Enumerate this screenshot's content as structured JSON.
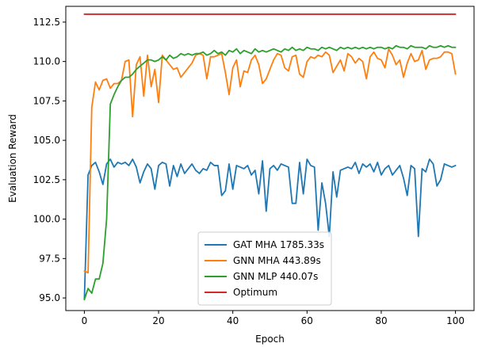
{
  "chart_data": {
    "type": "line",
    "title": "",
    "xlabel": "Epoch",
    "ylabel": "Evaluation Reward",
    "xlim": [
      -5,
      105
    ],
    "ylim": [
      94.2,
      113.5
    ],
    "xticks": [
      0,
      20,
      40,
      60,
      80,
      100
    ],
    "yticks": [
      95.0,
      97.5,
      100.0,
      102.5,
      105.0,
      107.5,
      110.0,
      112.5
    ],
    "ytick_labels": [
      "95.0",
      "97.5",
      "100.0",
      "102.5",
      "105.0",
      "107.5",
      "110.0",
      "112.5"
    ],
    "grid": false,
    "legend_position": "lower-center",
    "series": [
      {
        "name": "GAT MHA 1785.33s",
        "color": "#1f77b4",
        "x": [
          0,
          1,
          2,
          3,
          4,
          5,
          6,
          7,
          8,
          9,
          10,
          11,
          12,
          13,
          14,
          15,
          16,
          17,
          18,
          19,
          20,
          21,
          22,
          23,
          24,
          25,
          26,
          27,
          28,
          29,
          30,
          31,
          32,
          33,
          34,
          35,
          36,
          37,
          38,
          39,
          40,
          41,
          42,
          43,
          44,
          45,
          46,
          47,
          48,
          49,
          50,
          51,
          52,
          53,
          54,
          55,
          56,
          57,
          58,
          59,
          60,
          61,
          62,
          63,
          64,
          65,
          66,
          67,
          68,
          69,
          70,
          71,
          72,
          73,
          74,
          75,
          76,
          77,
          78,
          79,
          80,
          81,
          82,
          83,
          84,
          85,
          86,
          87,
          88,
          89,
          90,
          91,
          92,
          93,
          94,
          95,
          96,
          97,
          98,
          99,
          100
        ],
        "y": [
          94.9,
          102.8,
          103.4,
          103.6,
          103.0,
          102.2,
          103.5,
          103.8,
          103.3,
          103.6,
          103.5,
          103.6,
          103.4,
          103.8,
          103.3,
          102.3,
          103.0,
          103.5,
          103.2,
          101.9,
          103.4,
          103.6,
          103.5,
          102.1,
          103.4,
          102.7,
          103.5,
          102.9,
          103.2,
          103.5,
          103.1,
          102.9,
          103.2,
          103.1,
          103.6,
          103.4,
          103.4,
          101.5,
          101.8,
          103.5,
          101.9,
          103.4,
          103.3,
          103.2,
          103.4,
          102.8,
          103.1,
          101.6,
          103.7,
          100.5,
          103.2,
          103.4,
          103.1,
          103.5,
          103.4,
          103.3,
          101.0,
          101.0,
          103.6,
          101.6,
          103.8,
          103.4,
          103.3,
          99.3,
          102.3,
          101.0,
          98.9,
          103.0,
          101.4,
          103.1,
          103.2,
          103.3,
          103.2,
          103.6,
          102.9,
          103.5,
          103.3,
          103.5,
          103.0,
          103.6,
          102.8,
          103.2,
          103.4,
          102.8,
          103.1,
          103.4,
          102.6,
          101.5,
          103.4,
          103.2,
          98.9,
          103.2,
          103.0,
          103.8,
          103.5,
          102.1,
          102.5,
          103.5,
          103.4,
          103.3,
          103.4
        ]
      },
      {
        "name": "GNN MHA 443.89s",
        "color": "#ff7f0e",
        "x": [
          0,
          1,
          2,
          3,
          4,
          5,
          6,
          7,
          8,
          9,
          10,
          11,
          12,
          13,
          14,
          15,
          16,
          17,
          18,
          19,
          20,
          21,
          22,
          23,
          24,
          25,
          26,
          27,
          28,
          29,
          30,
          31,
          32,
          33,
          34,
          35,
          36,
          37,
          38,
          39,
          40,
          41,
          42,
          43,
          44,
          45,
          46,
          47,
          48,
          49,
          50,
          51,
          52,
          53,
          54,
          55,
          56,
          57,
          58,
          59,
          60,
          61,
          62,
          63,
          64,
          65,
          66,
          67,
          68,
          69,
          70,
          71,
          72,
          73,
          74,
          75,
          76,
          77,
          78,
          79,
          80,
          81,
          82,
          83,
          84,
          85,
          86,
          87,
          88,
          89,
          90,
          91,
          92,
          93,
          94,
          95,
          96,
          97,
          98,
          99,
          100
        ],
        "y": [
          96.7,
          96.6,
          107.1,
          108.7,
          108.2,
          108.8,
          108.9,
          108.3,
          108.6,
          108.6,
          108.8,
          110.0,
          110.1,
          106.5,
          109.8,
          110.3,
          107.8,
          110.4,
          108.4,
          109.5,
          107.4,
          110.4,
          110.1,
          109.8,
          109.5,
          109.6,
          109.0,
          109.3,
          109.6,
          109.9,
          110.4,
          110.5,
          110.4,
          108.9,
          110.3,
          110.3,
          110.4,
          110.5,
          109.3,
          107.9,
          109.6,
          110.1,
          108.4,
          109.4,
          109.3,
          110.1,
          110.4,
          109.8,
          108.6,
          108.9,
          109.5,
          110.1,
          110.5,
          110.4,
          109.6,
          109.4,
          110.3,
          110.4,
          109.2,
          109.0,
          110.0,
          110.3,
          110.2,
          110.4,
          110.3,
          110.6,
          110.4,
          109.3,
          109.7,
          110.1,
          109.4,
          110.5,
          110.3,
          109.9,
          110.2,
          110.0,
          108.9,
          110.3,
          110.6,
          110.2,
          110.1,
          109.6,
          110.8,
          110.4,
          109.8,
          110.1,
          109.0,
          109.9,
          110.5,
          110.0,
          110.1,
          110.7,
          109.5,
          110.1,
          110.2,
          110.2,
          110.3,
          110.6,
          110.6,
          110.5,
          109.2
        ]
      },
      {
        "name": "GNN MLP 440.07s",
        "color": "#2ca02c",
        "x": [
          0,
          1,
          2,
          3,
          4,
          5,
          6,
          7,
          8,
          9,
          10,
          11,
          12,
          13,
          14,
          15,
          16,
          17,
          18,
          19,
          20,
          21,
          22,
          23,
          24,
          25,
          26,
          27,
          28,
          29,
          30,
          31,
          32,
          33,
          34,
          35,
          36,
          37,
          38,
          39,
          40,
          41,
          42,
          43,
          44,
          45,
          46,
          47,
          48,
          49,
          50,
          51,
          52,
          53,
          54,
          55,
          56,
          57,
          58,
          59,
          60,
          61,
          62,
          63,
          64,
          65,
          66,
          67,
          68,
          69,
          70,
          71,
          72,
          73,
          74,
          75,
          76,
          77,
          78,
          79,
          80,
          81,
          82,
          83,
          84,
          85,
          86,
          87,
          88,
          89,
          90,
          91,
          92,
          93,
          94,
          95,
          96,
          97,
          98,
          99,
          100
        ],
        "y": [
          94.9,
          95.6,
          95.3,
          96.2,
          96.2,
          97.2,
          100.0,
          107.3,
          107.9,
          108.4,
          108.8,
          109.0,
          109.0,
          109.2,
          109.5,
          109.7,
          109.9,
          110.1,
          110.1,
          110.0,
          110.1,
          110.3,
          110.1,
          110.4,
          110.2,
          110.3,
          110.5,
          110.4,
          110.5,
          110.4,
          110.5,
          110.5,
          110.6,
          110.4,
          110.5,
          110.7,
          110.5,
          110.6,
          110.4,
          110.7,
          110.6,
          110.8,
          110.5,
          110.7,
          110.6,
          110.5,
          110.8,
          110.6,
          110.7,
          110.6,
          110.7,
          110.8,
          110.7,
          110.6,
          110.8,
          110.7,
          110.9,
          110.7,
          110.8,
          110.7,
          110.9,
          110.8,
          110.8,
          110.7,
          110.9,
          110.8,
          110.9,
          110.8,
          110.7,
          110.9,
          110.8,
          110.9,
          110.8,
          110.9,
          110.8,
          110.9,
          110.8,
          110.9,
          110.8,
          110.9,
          110.9,
          110.8,
          110.9,
          110.8,
          111.0,
          110.9,
          110.9,
          110.8,
          111.0,
          110.9,
          110.9,
          110.9,
          110.8,
          111.0,
          110.9,
          110.9,
          111.0,
          110.9,
          111.0,
          110.9,
          110.9
        ]
      },
      {
        "name": "Optimum",
        "color": "#d62728",
        "x": [
          0,
          100
        ],
        "y": [
          113.0,
          113.0
        ]
      }
    ]
  }
}
